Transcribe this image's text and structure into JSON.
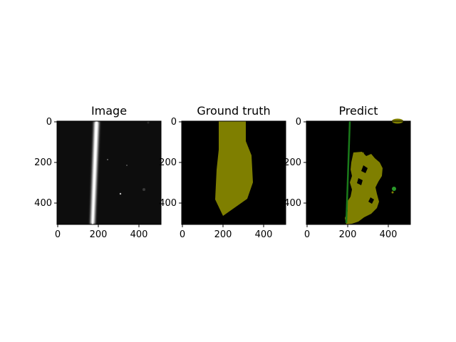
{
  "colors": {
    "background": "#000000",
    "mask": "#7f7f00",
    "prediction_line": "#1a7a1a",
    "prediction_blob": "#2a9a2a",
    "image_streak": "#ffffff"
  },
  "panels": [
    {
      "title": "Image",
      "x_ticks": [
        "0",
        "200",
        "400"
      ],
      "y_ticks": [
        "0",
        "200",
        "400"
      ]
    },
    {
      "title": "Ground truth",
      "x_ticks": [
        "0",
        "200",
        "400"
      ],
      "y_ticks": [
        "0",
        "200",
        "400"
      ]
    },
    {
      "title": "Predict",
      "x_ticks": [
        "0",
        "200",
        "400"
      ],
      "y_ticks": [
        "0",
        "200",
        "400"
      ]
    }
  ]
}
